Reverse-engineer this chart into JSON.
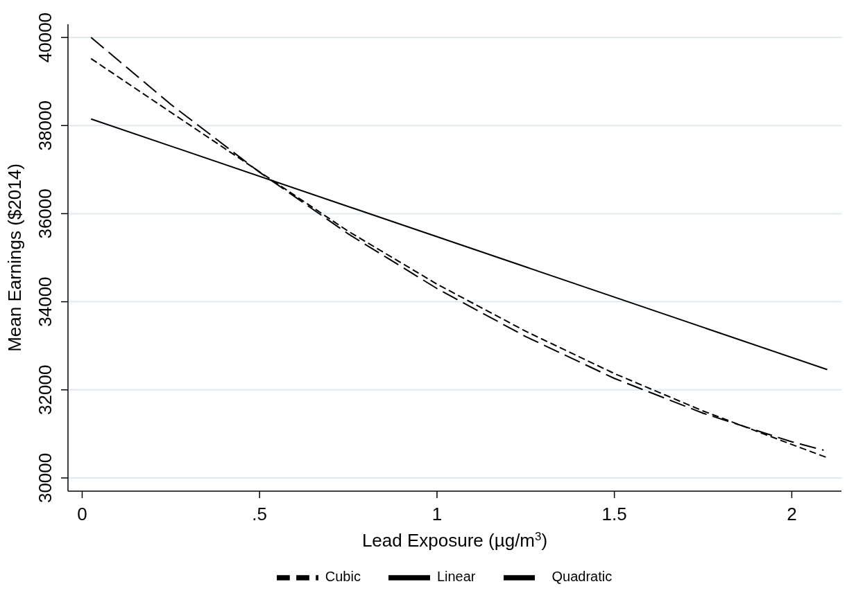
{
  "chart_data": {
    "type": "line",
    "xlabel": "Lead Exposure (µg/m$^{3}$)",
    "ylabel": "Mean Earnings ($2014)",
    "series": [
      {
        "name": "Linear",
        "color": "#000000",
        "line_style": "solid",
        "x": [
          0.025,
          2.1
        ],
        "values": [
          38150,
          32460
        ]
      },
      {
        "name": "Quadratic",
        "color": "#000000",
        "line_style": "dashed",
        "x": [
          0.025,
          0.25,
          0.5,
          0.75,
          1,
          1.25,
          1.5,
          1.75,
          2,
          2.09
        ],
        "values": [
          40000,
          38480,
          36940,
          35540,
          34300,
          33210,
          32260,
          31470,
          30820,
          30630
        ]
      },
      {
        "name": "Cubic",
        "color": "#000000",
        "line_style": "dotted",
        "x": [
          0.025,
          0.25,
          0.5,
          0.75,
          1,
          1.25,
          1.5,
          1.75,
          2,
          2.1
        ],
        "values": [
          39520,
          38300,
          36950,
          35600,
          34400,
          33330,
          32370,
          31520,
          30760,
          30460
        ]
      }
    ],
    "xlim": [
      -0.04,
      2.14
    ],
    "ylim": [
      29700,
      40300
    ],
    "xticks": [
      0,
      {
        "value": 0.5,
        "label": ".5"
      },
      1,
      1.5,
      2
    ],
    "yticks": [
      30000,
      32000,
      34000,
      36000,
      38000,
      40000
    ],
    "grid": "y",
    "legend": "bottom"
  }
}
